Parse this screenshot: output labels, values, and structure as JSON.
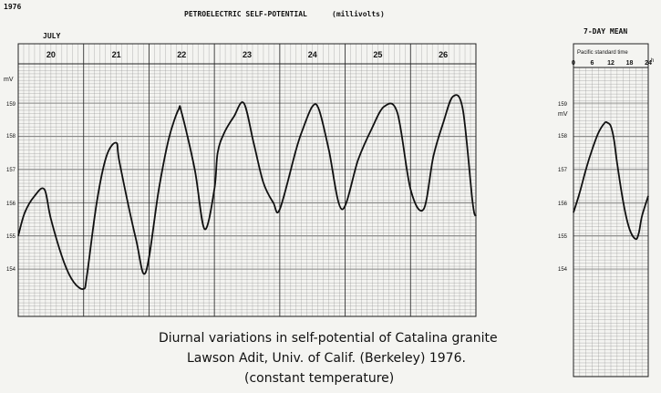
{
  "header": {
    "year": "1976",
    "title": "PETROELECTRIC SELF-POTENTIAL",
    "units": "(millivolts)"
  },
  "caption": {
    "line1": "Diurnal variations in self-potential of Catalina granite",
    "line2": "Lawson Adit, Univ. of Calif. (Berkeley) 1976.",
    "line3": "(constant temperature)"
  },
  "colors": {
    "paper": "#f4f4f1",
    "ink": "#111111",
    "grid": "#8a8a8a"
  },
  "chart_data": [
    {
      "type": "line",
      "month_label": "JULY",
      "days": [
        "20",
        "21",
        "22",
        "23",
        "24",
        "25",
        "26"
      ],
      "unit_label": "mV",
      "ylim": [
        153.5,
        159.3
      ],
      "xlim": [
        0,
        7
      ],
      "ytick_labels": [
        "159",
        "158",
        "157",
        "156",
        "155",
        "154"
      ],
      "ytick_values": [
        159,
        158,
        157,
        156,
        155,
        154
      ],
      "grid": true,
      "series": [
        {
          "x": [
            0.0,
            0.1,
            0.25,
            0.4,
            0.5,
            0.7,
            0.85,
            1.0,
            1.05,
            1.2,
            1.35,
            1.5,
            1.55,
            1.8,
            1.95,
            2.15,
            2.3,
            2.45,
            2.5,
            2.7,
            2.85,
            3.0,
            3.05,
            3.15,
            3.3,
            3.45,
            3.6,
            3.75,
            3.9,
            4.0,
            4.25,
            4.35,
            4.5,
            4.6,
            4.75,
            4.95,
            5.2,
            5.4,
            5.6,
            5.8,
            6.0,
            6.2,
            6.35,
            6.5,
            6.65,
            6.8,
            6.95,
            7.0
          ],
          "y": [
            155.0,
            155.7,
            156.2,
            156.4,
            155.5,
            154.2,
            153.6,
            153.4,
            153.8,
            156.0,
            157.4,
            157.8,
            157.2,
            154.9,
            153.9,
            156.4,
            157.9,
            158.8,
            158.7,
            157.0,
            155.2,
            156.4,
            157.5,
            158.1,
            158.6,
            159.0,
            157.8,
            156.6,
            156.0,
            155.8,
            157.6,
            158.2,
            158.9,
            158.8,
            157.6,
            155.8,
            157.3,
            158.2,
            158.9,
            158.7,
            156.4,
            155.8,
            157.4,
            158.4,
            159.2,
            158.8,
            156.0,
            155.6
          ]
        }
      ]
    },
    {
      "type": "line",
      "title": "7-DAY MEAN",
      "xlabel": "Pacific standard time",
      "x_ticks": [
        "0",
        "6",
        "12",
        "18",
        "24"
      ],
      "x_unit": "h",
      "unit_label": "mV",
      "xlim": [
        0,
        24
      ],
      "ylim": [
        153.5,
        159.3
      ],
      "ytick_labels": [
        "159",
        "158",
        "157",
        "156",
        "155",
        "154"
      ],
      "ytick_values": [
        159,
        158,
        157,
        156,
        155,
        154
      ],
      "grid": true,
      "series": [
        {
          "x": [
            0,
            2,
            4,
            6,
            8,
            10,
            11,
            12,
            13,
            14,
            16,
            18,
            20,
            21,
            22,
            24
          ],
          "y": [
            155.7,
            156.3,
            157.0,
            157.6,
            158.1,
            158.4,
            158.4,
            158.3,
            157.9,
            157.2,
            156.0,
            155.2,
            154.9,
            155.1,
            155.6,
            156.2
          ]
        }
      ]
    }
  ]
}
